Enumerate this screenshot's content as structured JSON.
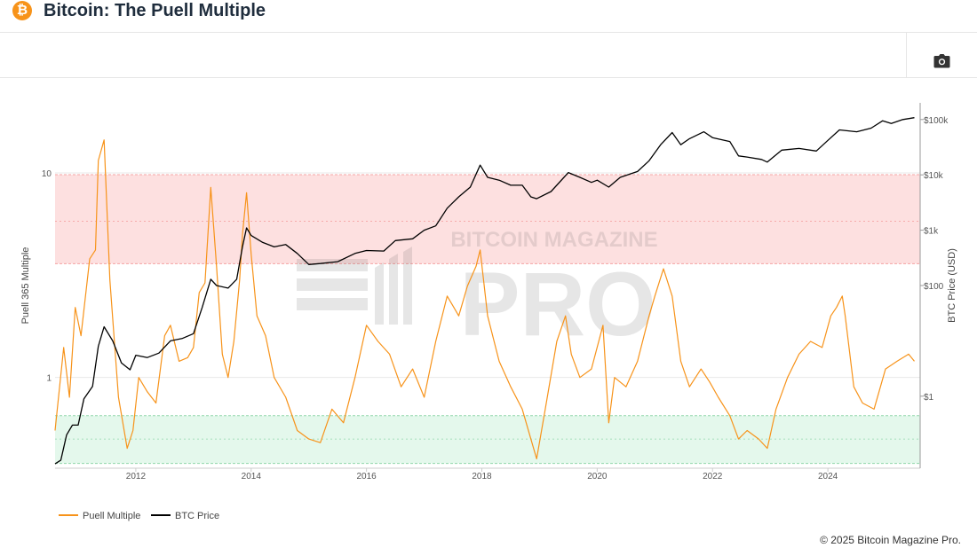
{
  "header": {
    "logo_glyph": "₿",
    "title": "Bitcoin: The Puell Multiple"
  },
  "toolbar": {
    "camera_icon": "camera-icon"
  },
  "footer": {
    "copyright": "© 2025 Bitcoin Magazine Pro."
  },
  "watermark": {
    "top": "BITCOIN MAGAZINE",
    "main": "PRO"
  },
  "colors": {
    "puell": "#f7931a",
    "price": "#000000",
    "red_band": "#fde0e0",
    "green_band": "#e4f8ec",
    "red_line": "#f5a3a3",
    "green_line": "#8fd6aa"
  },
  "chart_data": {
    "type": "line",
    "x_range": [
      2010.6,
      2025.6
    ],
    "x_ticks": [
      "2012",
      "2014",
      "2016",
      "2018",
      "2020",
      "2022",
      "2024"
    ],
    "left_axis": {
      "label": "Puell 365 Multiple",
      "scale": "log",
      "range": [
        0.36,
        22
      ],
      "ticks": [
        "10",
        "1"
      ]
    },
    "right_axis": {
      "label": "BTC Price (USD)",
      "scale": "log",
      "range": [
        0.05,
        200000
      ],
      "ticks": [
        "$100k",
        "$10k",
        "$1k",
        "$100",
        "$1"
      ]
    },
    "bands": [
      {
        "name": "high",
        "from": 3.6,
        "to": 9.8,
        "inner_line": 5.8
      },
      {
        "name": "low",
        "from": 0.38,
        "to": 0.65,
        "inner_line": 0.5
      }
    ],
    "legend": [
      "Puell Multiple",
      "BTC Price"
    ],
    "grid": true,
    "series": [
      {
        "name": "Puell Multiple",
        "x": [
          2010.6,
          2010.75,
          2010.85,
          2010.95,
          2011.05,
          2011.2,
          2011.3,
          2011.35,
          2011.45,
          2011.55,
          2011.7,
          2011.85,
          2011.95,
          2012.05,
          2012.2,
          2012.35,
          2012.5,
          2012.6,
          2012.75,
          2012.9,
          2013.0,
          2013.1,
          2013.2,
          2013.3,
          2013.4,
          2013.5,
          2013.6,
          2013.7,
          2013.8,
          2013.85,
          2013.92,
          2014.0,
          2014.1,
          2014.25,
          2014.4,
          2014.6,
          2014.8,
          2015.0,
          2015.2,
          2015.4,
          2015.6,
          2015.8,
          2016.0,
          2016.2,
          2016.4,
          2016.6,
          2016.8,
          2017.0,
          2017.2,
          2017.4,
          2017.6,
          2017.75,
          2017.9,
          2017.97,
          2018.1,
          2018.3,
          2018.5,
          2018.7,
          2018.85,
          2018.95,
          2019.1,
          2019.3,
          2019.45,
          2019.55,
          2019.7,
          2019.9,
          2020.1,
          2020.2,
          2020.3,
          2020.5,
          2020.7,
          2020.9,
          2021.0,
          2021.15,
          2021.3,
          2021.45,
          2021.6,
          2021.8,
          2021.95,
          2022.1,
          2022.3,
          2022.45,
          2022.6,
          2022.8,
          2022.95,
          2023.1,
          2023.3,
          2023.5,
          2023.7,
          2023.9,
          2024.05,
          2024.15,
          2024.25,
          2024.3,
          2024.45,
          2024.6,
          2024.8,
          2025.0,
          2025.2,
          2025.4,
          2025.5
        ],
        "values": [
          0.55,
          1.4,
          0.8,
          2.2,
          1.6,
          3.8,
          4.2,
          11.5,
          14.5,
          3.0,
          0.8,
          0.45,
          0.55,
          1.0,
          0.85,
          0.75,
          1.6,
          1.8,
          1.2,
          1.25,
          1.4,
          2.6,
          2.9,
          8.5,
          3.5,
          1.3,
          1.0,
          1.5,
          3.0,
          5.0,
          8.0,
          4.0,
          2.0,
          1.6,
          1.0,
          0.8,
          0.55,
          0.5,
          0.48,
          0.7,
          0.6,
          1.0,
          1.8,
          1.5,
          1.3,
          0.9,
          1.1,
          0.8,
          1.5,
          2.5,
          2.0,
          2.8,
          3.5,
          4.2,
          2.0,
          1.2,
          0.9,
          0.7,
          0.5,
          0.4,
          0.7,
          1.5,
          2.0,
          1.3,
          1.0,
          1.1,
          1.8,
          0.6,
          1.0,
          0.9,
          1.2,
          2.0,
          2.5,
          3.4,
          2.5,
          1.2,
          0.9,
          1.1,
          0.95,
          0.8,
          0.65,
          0.5,
          0.55,
          0.5,
          0.45,
          0.7,
          1.0,
          1.3,
          1.5,
          1.4,
          2.0,
          2.2,
          2.5,
          2.0,
          0.9,
          0.75,
          0.7,
          1.1,
          1.2,
          1.3,
          1.2
        ]
      },
      {
        "name": "BTC Price",
        "x": [
          2010.6,
          2010.7,
          2010.8,
          2010.9,
          2011.0,
          2011.1,
          2011.25,
          2011.35,
          2011.45,
          2011.6,
          2011.75,
          2011.9,
          2012.0,
          2012.2,
          2012.4,
          2012.6,
          2012.8,
          2013.0,
          2013.15,
          2013.3,
          2013.4,
          2013.6,
          2013.75,
          2013.85,
          2013.92,
          2014.0,
          2014.2,
          2014.4,
          2014.6,
          2014.8,
          2015.0,
          2015.2,
          2015.5,
          2015.8,
          2016.0,
          2016.3,
          2016.5,
          2016.8,
          2017.0,
          2017.2,
          2017.4,
          2017.6,
          2017.8,
          2017.97,
          2018.1,
          2018.3,
          2018.5,
          2018.7,
          2018.85,
          2018.95,
          2019.2,
          2019.5,
          2019.7,
          2019.9,
          2020.0,
          2020.2,
          2020.4,
          2020.7,
          2020.9,
          2021.1,
          2021.3,
          2021.45,
          2021.6,
          2021.85,
          2022.0,
          2022.3,
          2022.45,
          2022.6,
          2022.85,
          2022.95,
          2023.2,
          2023.5,
          2023.8,
          2024.0,
          2024.2,
          2024.5,
          2024.75,
          2024.95,
          2025.1,
          2025.3,
          2025.5
        ],
        "values": [
          0.06,
          0.07,
          0.2,
          0.3,
          0.3,
          0.9,
          1.5,
          8.0,
          18.0,
          10.0,
          4.0,
          3.0,
          5.5,
          5.0,
          6.0,
          10.0,
          11.0,
          13.5,
          40,
          130,
          100,
          90,
          130,
          500,
          1100,
          800,
          600,
          500,
          550,
          380,
          240,
          250,
          270,
          380,
          430,
          420,
          650,
          700,
          1000,
          1200,
          2500,
          4000,
          6000,
          15000,
          9000,
          8000,
          6500,
          6500,
          4000,
          3700,
          5000,
          11000,
          9000,
          7300,
          8000,
          6000,
          9000,
          11500,
          18000,
          35000,
          58000,
          35000,
          45000,
          60000,
          47000,
          40000,
          22000,
          21000,
          19000,
          17000,
          28000,
          30000,
          27000,
          42000,
          65000,
          60000,
          70000,
          95000,
          85000,
          100000,
          108000
        ]
      }
    ]
  }
}
